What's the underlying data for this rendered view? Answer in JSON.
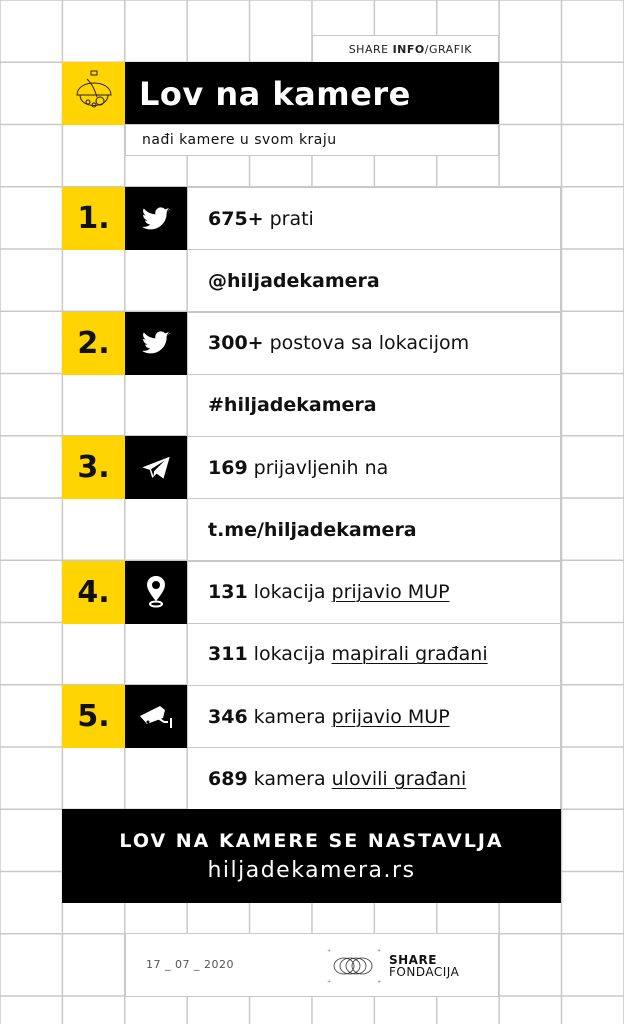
{
  "header": {
    "tagline_prefix": "SHARE ",
    "tagline_bold": "INFO",
    "tagline_suffix": "/GRAFIK",
    "title": "Lov na kamere",
    "subtitle": "nađi kamere u svom kraju",
    "logo_icon": "dome-camera-icon"
  },
  "colors": {
    "accent": "#ffd400",
    "dark": "#000000",
    "grid": "#c8c8c8"
  },
  "items": [
    {
      "number": "1.",
      "icon": "twitter-icon",
      "lines": [
        {
          "value": "675+",
          "text": "prati",
          "link": ""
        },
        {
          "value": "@hiljadekamera",
          "text": "",
          "link": ""
        }
      ]
    },
    {
      "number": "2.",
      "icon": "twitter-icon",
      "lines": [
        {
          "value": "300+",
          "text": "postova sa lokacijom",
          "link": ""
        },
        {
          "value": "#hiljadekamera",
          "text": "",
          "link": ""
        }
      ]
    },
    {
      "number": "3.",
      "icon": "telegram-icon",
      "lines": [
        {
          "value": "169",
          "text": "prijavljenih na",
          "link": ""
        },
        {
          "value": "t.me/hiljadekamera",
          "text": "",
          "link": ""
        }
      ]
    },
    {
      "number": "4.",
      "icon": "location-pin-icon",
      "lines": [
        {
          "value": "131",
          "text": "lokacija",
          "link": "prijavio MUP"
        },
        {
          "value": "311",
          "text": "lokacija",
          "link": "mapirali građani"
        }
      ]
    },
    {
      "number": "5.",
      "icon": "cctv-camera-icon",
      "lines": [
        {
          "value": "346",
          "text": "kamera",
          "link": "prijavio MUP"
        },
        {
          "value": "689",
          "text": "kamera",
          "link": "ulovili građani"
        }
      ]
    }
  ],
  "cta": {
    "headline": "LOV NA KAMERE SE NASTAVLJA",
    "url": "hiljadekamera.rs"
  },
  "footer": {
    "date": "17 _ 07 _ 2020",
    "org_line1": "SHARE",
    "org_line2": "FONDACIJA"
  }
}
